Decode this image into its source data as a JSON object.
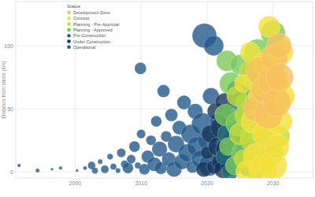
{
  "chart_data": {
    "type": "scatter",
    "y_label": "Distance from shore (km)",
    "legend_title": "Status",
    "legend": "top-left",
    "grid": true,
    "xlim": [
      1991,
      2036
    ],
    "ylim": [
      -5,
      135
    ],
    "xticks": [
      2000,
      2010,
      2020,
      2030
    ],
    "yticks": [
      0,
      50,
      100
    ],
    "series": [
      {
        "name": "Development Zone",
        "color": "#f7c15e",
        "x": [
          2027.5,
          2028,
          2028.7,
          2029.3,
          2029.8,
          2030.2,
          2030.6,
          2031,
          2030.9
        ],
        "values": [
          50,
          80,
          65,
          45,
          72,
          90,
          55,
          75,
          100
        ],
        "sizes": [
          1800,
          2000,
          1800,
          2000,
          2000,
          1800,
          2000,
          1900,
          1600
        ]
      },
      {
        "name": "Concept",
        "color": "#f5e03c",
        "x": [
          2025.5,
          2026,
          2026.5,
          2027,
          2027.5,
          2028,
          2028.5,
          2028.8,
          2029,
          2029.4,
          2029.7,
          2030,
          2030.3,
          2030.6,
          2031,
          2031.3,
          2031.6
        ],
        "values": [
          70,
          0,
          95,
          40,
          12,
          60,
          2,
          85,
          30,
          115,
          50,
          5,
          70,
          20,
          40,
          95,
          60
        ],
        "sizes": [
          800,
          1200,
          1000,
          1500,
          1800,
          1400,
          2000,
          1600,
          1900,
          1200,
          1700,
          2000,
          1800,
          1500,
          1600,
          1400,
          1300
        ]
      },
      {
        "name": "Planning - Pre-Approval",
        "color": "#c3dc38",
        "x": [
          2024.5,
          2025,
          2025.5,
          2026,
          2026.5,
          2027,
          2027.5,
          2028,
          2028.4,
          2028.8,
          2029.2,
          2029.6,
          2030,
          2030.4,
          2031
        ],
        "values": [
          60,
          30,
          10,
          45,
          80,
          25,
          55,
          8,
          70,
          35,
          90,
          15,
          50,
          75,
          28
        ],
        "sizes": [
          1000,
          1200,
          900,
          1400,
          1100,
          1600,
          1300,
          1500,
          1800,
          1400,
          1200,
          1700,
          1500,
          1300,
          1100
        ]
      },
      {
        "name": "Planning - Approved",
        "color": "#7cc95a",
        "x": [
          2022.8,
          2023.2,
          2023.6,
          2023,
          2024.2,
          2024.7,
          2025,
          2025.5,
          2026,
          2026.4,
          2026.8,
          2027.2,
          2027.7,
          2028,
          2028.5,
          2029,
          2030
        ],
        "values": [
          45,
          20,
          70,
          88,
          5,
          38,
          85,
          15,
          55,
          28,
          75,
          2,
          94,
          40,
          65,
          20,
          110
        ],
        "sizes": [
          1200,
          800,
          1300,
          1100,
          900,
          1500,
          1000,
          1400,
          1200,
          900,
          1600,
          1100,
          2000,
          1300,
          1000,
          1200,
          1500
        ]
      },
      {
        "name": "Pre-Construction",
        "color": "#1f6f78",
        "x": [
          2022.5,
          2023,
          2023.5,
          2024,
          2024.5,
          2025,
          2025.4,
          2025.8,
          2026.2
        ],
        "values": [
          12,
          30,
          0,
          48,
          20,
          8,
          60,
          35,
          3
        ],
        "sizes": [
          600,
          900,
          700,
          1000,
          1200,
          800,
          1100,
          900,
          700
        ]
      },
      {
        "name": "Under Construction",
        "color": "#15365a",
        "x": [
          2019.5,
          2020,
          2020.5,
          2021,
          2021.3,
          2021.6,
          2021.9,
          2022.1,
          2022.4,
          2022.7,
          2023,
          2023.3,
          2023.6,
          2024,
          2024.4
        ],
        "values": [
          2,
          15,
          30,
          4,
          48,
          20,
          8,
          35,
          2,
          55,
          18,
          42,
          5,
          25,
          65
        ],
        "sizes": [
          600,
          400,
          800,
          500,
          700,
          900,
          600,
          1100,
          800,
          900,
          1200,
          700,
          1000,
          1300,
          800
        ]
      },
      {
        "name": "Operational",
        "color": "#235a8c",
        "x": [
          1991.5,
          1994.3,
          1996.5,
          1997.8,
          2000.3,
          2001.5,
          2002.5,
          2003,
          2003.8,
          2004.5,
          2005.3,
          2005.8,
          2006.5,
          2007,
          2007.5,
          2008,
          2008.5,
          2009,
          2009.5,
          2009.9,
          2010,
          2010.5,
          2011,
          2011.5,
          2012,
          2012.3,
          2012.8,
          2013,
          2013.4,
          2013.8,
          2014.2,
          2014.6,
          2015,
          2015.3,
          2015.8,
          2016.2,
          2016.5,
          2017,
          2017.5,
          2017.8,
          2018.2,
          2018.5,
          2019,
          2019.3,
          2019.6,
          2020,
          2020.3,
          2020.6,
          2021,
          2021.2,
          2021.6,
          2022
        ],
        "values": [
          5,
          1,
          2,
          3,
          1,
          3,
          5,
          1,
          8,
          2,
          12,
          4,
          1,
          15,
          6,
          3,
          10,
          20,
          5,
          82,
          30,
          2,
          12,
          25,
          6,
          40,
          18,
          3,
          64,
          28,
          10,
          45,
          2,
          22,
          35,
          8,
          55,
          15,
          30,
          4,
          48,
          20,
          10,
          38,
          108,
          25,
          5,
          60,
          100,
          15,
          40,
          8
        ],
        "sizes": [
          30,
          40,
          20,
          30,
          20,
          40,
          150,
          100,
          60,
          160,
          90,
          100,
          60,
          200,
          150,
          300,
          200,
          300,
          100,
          350,
          200,
          300,
          400,
          250,
          500,
          300,
          600,
          400,
          400,
          300,
          500,
          400,
          600,
          700,
          500,
          600,
          500,
          800,
          900,
          400,
          600,
          1000,
          800,
          1200,
          1500,
          900,
          1100,
          700,
          1000,
          800,
          600,
          500
        ]
      }
    ]
  }
}
